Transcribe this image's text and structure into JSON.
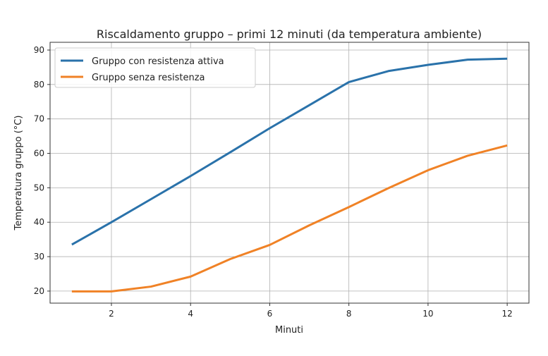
{
  "chart_data": {
    "type": "line",
    "title": "Riscaldamento gruppo – primi 12 minuti (da temperatura ambiente)",
    "xlabel": "Minuti",
    "ylabel": "Temperatura gruppo (°C)",
    "x": [
      1,
      2,
      3,
      4,
      5,
      6,
      7,
      8,
      9,
      10,
      11,
      12
    ],
    "xlim": [
      0.45,
      12.55
    ],
    "ylim": [
      16.5,
      92.25
    ],
    "xticks": [
      2,
      4,
      6,
      8,
      10,
      12
    ],
    "yticks": [
      20,
      30,
      40,
      50,
      60,
      70,
      80,
      90
    ],
    "grid": true,
    "legend_position": "top-left",
    "series": [
      {
        "name": "Gruppo con resistenza attiva",
        "color": "#2a72aa",
        "values": [
          33.5,
          40.0,
          46.7,
          53.4,
          60.3,
          67.3,
          74.0,
          80.7,
          83.9,
          85.7,
          87.2,
          87.5
        ]
      },
      {
        "name": "Gruppo senza resistenza",
        "color": "#f08226",
        "values": [
          19.9,
          19.9,
          21.3,
          24.2,
          29.3,
          33.4,
          39.1,
          44.4,
          49.9,
          55.1,
          59.3,
          62.3
        ]
      }
    ]
  }
}
